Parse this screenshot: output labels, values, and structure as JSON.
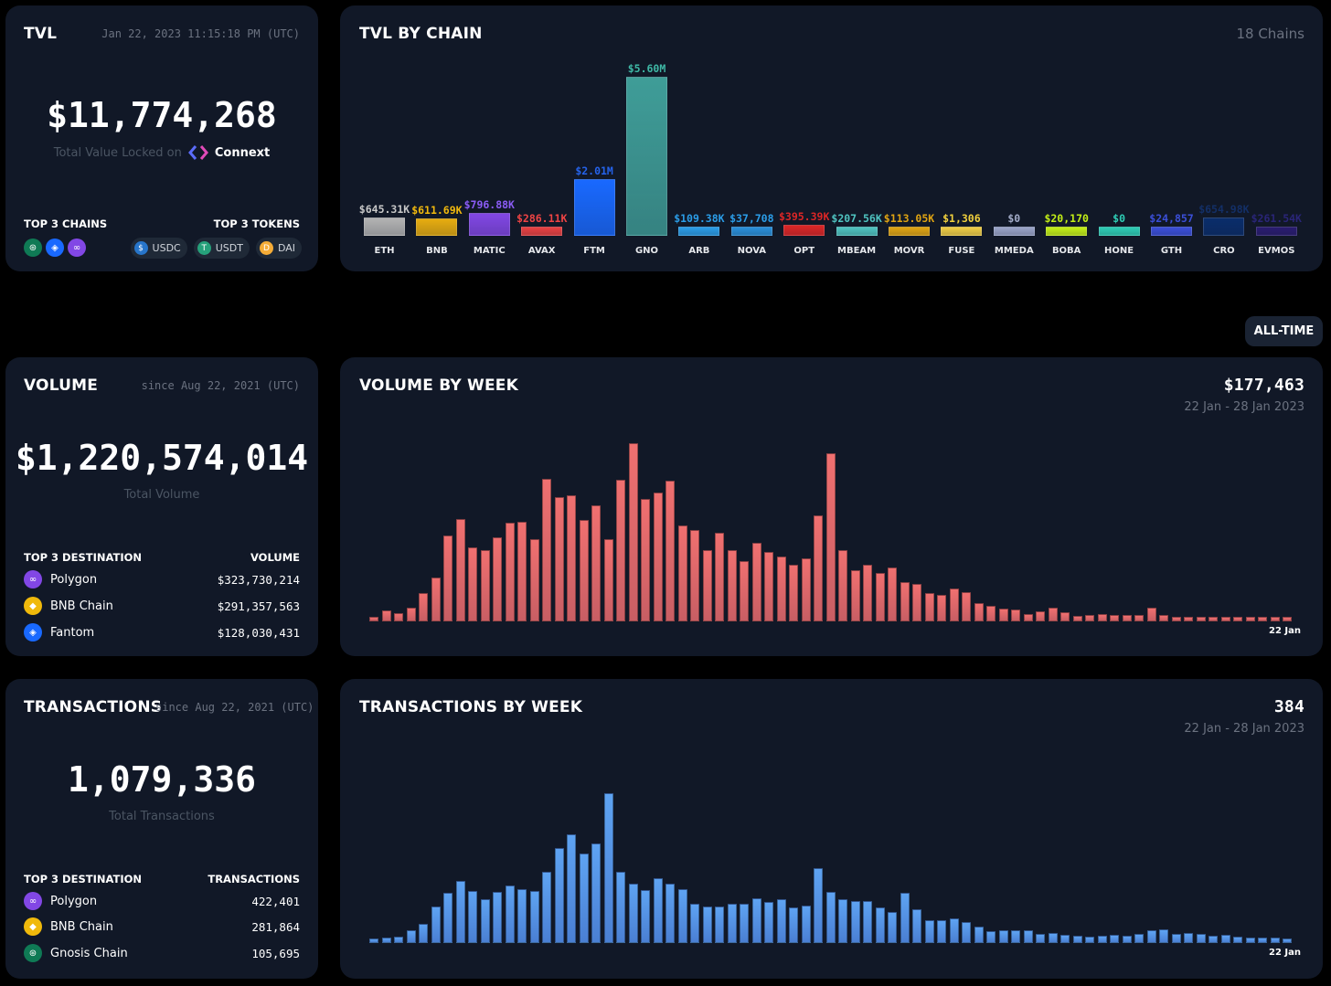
{
  "tvl": {
    "title": "TVL",
    "timestamp": "Jan 22, 2023 11:15:18 PM (UTC)",
    "value": "$11,774,268",
    "caption": "Total Value Locked on",
    "brand": "Connext",
    "top_chains_label": "TOP 3 CHAINS",
    "top_tokens_label": "TOP 3 TOKENS",
    "top_chains": [
      "gnosis-icon",
      "fantom-icon",
      "polygon-icon"
    ],
    "top_tokens": [
      "USDC",
      "USDT",
      "DAI"
    ]
  },
  "tvl_by_chain": {
    "title": "TVL BY CHAIN",
    "count": "18 Chains"
  },
  "range_button": "ALL-TIME",
  "volume": {
    "title": "VOLUME",
    "since": "since Aug 22, 2021 (UTC)",
    "value": "$1,220,574,014",
    "caption": "Total Volume",
    "dest_label": "TOP 3 DESTINATION",
    "col_label": "VOLUME",
    "rows": [
      {
        "name": "Polygon",
        "value": "$323,730,214"
      },
      {
        "name": "BNB Chain",
        "value": "$291,357,563"
      },
      {
        "name": "Fantom",
        "value": "$128,030,431"
      }
    ]
  },
  "volume_week": {
    "title": "VOLUME BY WEEK",
    "value": "$177,463",
    "range": "22 Jan - 28 Jan 2023",
    "end_label": "22 Jan"
  },
  "tx": {
    "title": "TRANSACTIONS",
    "since": "since Aug 22, 2021 (UTC)",
    "value": "1,079,336",
    "caption": "Total Transactions",
    "dest_label": "TOP 3 DESTINATION",
    "col_label": "TRANSACTIONS",
    "rows": [
      {
        "name": "Polygon",
        "value": "422,401"
      },
      {
        "name": "BNB Chain",
        "value": "281,864"
      },
      {
        "name": "Gnosis Chain",
        "value": "105,695"
      }
    ]
  },
  "tx_week": {
    "title": "TRANSACTIONS BY WEEK",
    "value": "384",
    "range": "22 Jan - 28 Jan 2023",
    "end_label": "22 Jan"
  },
  "chart_data": [
    {
      "type": "bar",
      "title": "TVL BY CHAIN",
      "categories": [
        "ETH",
        "BNB",
        "MATIC",
        "AVAX",
        "FTM",
        "GNO",
        "ARB",
        "NOVA",
        "OPT",
        "MBEAM",
        "MOVR",
        "FUSE",
        "MMEDA",
        "BOBA",
        "HONE",
        "GTH",
        "CRO",
        "EVMOS"
      ],
      "values": [
        645310,
        611690,
        796880,
        286110,
        2010000,
        5600000,
        109380,
        37708,
        395390,
        207560,
        113050,
        1306,
        0,
        20170,
        0,
        24857,
        654980,
        261540
      ],
      "labels": [
        "$645.31K",
        "$611.69K",
        "$796.88K",
        "$286.11K",
        "$2.01M",
        "$5.60M",
        "$109.38K",
        "$37,708",
        "$395.39K",
        "$207.56K",
        "$113.05K",
        "$1,306",
        "$0",
        "$20,170",
        "$0",
        "$24,857",
        "$654.98K",
        "$261.54K"
      ],
      "colors": [
        "#b3b3b3",
        "#e6ac10",
        "#8247e5",
        "#e84142",
        "#1969ff",
        "#3f9d98",
        "#2b9de8",
        "#2a8fd9",
        "#dc2626",
        "#4fc3c0",
        "#e0a412",
        "#f0cd45",
        "#9aa4c8",
        "#c4ef16",
        "#2ecdb5",
        "#3b4fd8",
        "#0a2d6b",
        "#2a1c70"
      ],
      "label_colors": [
        "#c7c7c7",
        "#f2b90d",
        "#8b5cf6",
        "#ef4444",
        "#2563eb",
        "#3fb8a6",
        "#2b9de8",
        "#2b9de8",
        "#dc2626",
        "#4fc3c0",
        "#e0a412",
        "#f2d13d",
        "#a3acc9",
        "#c4ef16",
        "#2ecdb5",
        "#3b4fd8",
        "#132f66",
        "#2a2578"
      ]
    },
    {
      "type": "bar",
      "title": "VOLUME BY WEEK",
      "unit": "relative",
      "values": [
        5,
        12,
        9,
        15,
        31,
        48,
        94,
        112,
        81,
        78,
        92,
        108,
        109,
        90,
        156,
        136,
        138,
        111,
        127,
        90,
        155,
        195,
        134,
        141,
        154,
        105,
        100,
        78,
        97,
        78,
        66,
        86,
        76,
        71,
        62,
        69,
        116,
        184,
        78,
        56,
        62,
        53,
        59,
        43,
        41,
        31,
        29,
        36,
        32,
        20,
        17,
        14,
        13,
        8,
        11,
        15,
        10,
        6,
        7,
        8,
        7,
        7,
        7,
        15,
        7,
        5,
        5,
        5,
        5,
        5,
        5,
        5,
        5,
        5,
        5
      ]
    },
    {
      "type": "bar",
      "title": "TRANSACTIONS BY WEEK",
      "unit": "relative",
      "values": [
        5,
        6,
        7,
        14,
        21,
        40,
        55,
        68,
        57,
        48,
        56,
        63,
        59,
        57,
        78,
        104,
        119,
        98,
        109,
        164,
        78,
        65,
        58,
        71,
        65,
        59,
        43,
        40,
        40,
        43,
        43,
        49,
        45,
        48,
        39,
        41,
        82,
        56,
        48,
        46,
        46,
        39,
        34,
        55,
        37,
        25,
        25,
        27,
        23,
        18,
        13,
        14,
        14,
        14,
        10,
        11,
        9,
        8,
        7,
        8,
        9,
        8,
        10,
        14,
        15,
        10,
        11,
        10,
        8,
        9,
        7,
        6,
        6,
        6,
        5
      ]
    }
  ]
}
